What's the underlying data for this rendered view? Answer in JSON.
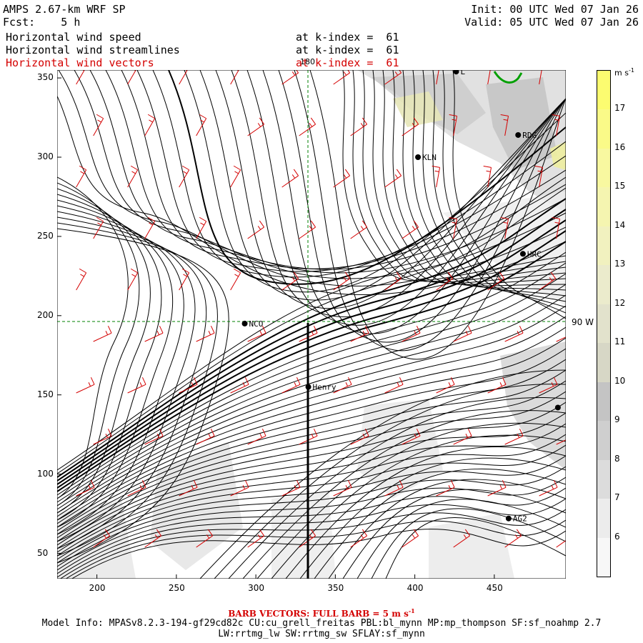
{
  "header": {
    "title": "AMPS 2.67-km WRF SP",
    "fcst_label": "Fcst:",
    "fcst_value": "5 h",
    "init": "Init: 00 UTC Wed 07 Jan 26",
    "valid": "Valid: 05 UTC Wed 07 Jan 26",
    "fields": [
      {
        "name": "Horizontal wind speed",
        "level": "at k-index =  61",
        "color": "#000000"
      },
      {
        "name": "Horizontal wind streamlines",
        "level": "at k-index =  61",
        "color": "#000000"
      },
      {
        "name": "Horizontal wind vectors",
        "level": "at k-index =  61",
        "color": "#d40000"
      }
    ]
  },
  "map": {
    "x_ticks": [
      200,
      250,
      300,
      350,
      400,
      450
    ],
    "y_ticks": [
      50,
      100,
      150,
      200,
      250,
      300,
      350
    ],
    "x_range": [
      175,
      495
    ],
    "y_range": [
      34,
      355
    ],
    "meridian_label": "180",
    "parallel_label": "90 W",
    "stations": [
      {
        "name": "L",
        "x": 426,
        "y": 354
      },
      {
        "name": "RDG",
        "x": 465,
        "y": 314
      },
      {
        "name": "KLN",
        "x": 402,
        "y": 300
      },
      {
        "name": "HRC",
        "x": 468,
        "y": 239
      },
      {
        "name": "NCO",
        "x": 293,
        "y": 195
      },
      {
        "name": "Henry",
        "x": 333,
        "y": 155
      },
      {
        "name": "",
        "x": 490,
        "y": 142
      },
      {
        "name": "AG2",
        "x": 459,
        "y": 72
      }
    ],
    "streamline_color": "#000000",
    "vector_color": "#d40000",
    "coast_color": "#00a000"
  },
  "colorbar": {
    "units": "m s",
    "units_exp": "-1",
    "levels": [
      6,
      7,
      8,
      9,
      10,
      11,
      12,
      13,
      14,
      15,
      16,
      17
    ],
    "colors": [
      "#f7f7f7",
      "#ececec",
      "#dcdcdc",
      "#cfcfcf",
      "#c4c4c4",
      "#d7d7c6",
      "#e2e2cc",
      "#ebebcc",
      "#f1f1bf",
      "#f5f5b0",
      "#f8f8a0",
      "#fafa88",
      "#fcfc70"
    ]
  },
  "footer": {
    "barb_text": "BARB VECTORS:  FULL BARB = 5 m s",
    "barb_exp": "-1",
    "model_info": "Model Info: MPASv8.2.3-194-gf29cd82c CU:cu_grell_freitas PBL:bl_mynn MP:mp_thompson SF:sf_noahmp 2.7",
    "model_info2": "LW:rrtmg_lw SW:rrtmg_sw SFLAY:sf_mynn"
  }
}
